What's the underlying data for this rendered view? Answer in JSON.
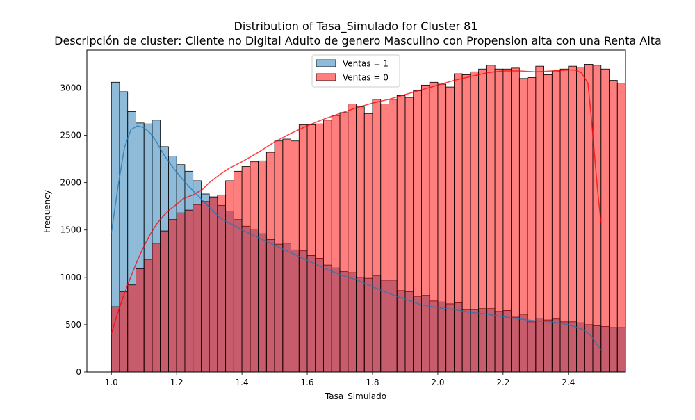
{
  "chart_data": {
    "type": "histogram",
    "title": "Distribution of Tasa_Simulado for Cluster 81",
    "subtitle": "Descripción de cluster: Cliente no Digital Adulto de genero Masculino con Propension alta con una Renta Alta",
    "xlabel": "Tasa_Simulado",
    "ylabel": "Frequency",
    "xlim": [
      0.925,
      2.575
    ],
    "ylim": [
      0,
      3400
    ],
    "xticks": [
      "1.0",
      "1.2",
      "1.4",
      "1.6",
      "1.8",
      "2.0",
      "2.2",
      "2.4"
    ],
    "yticks": [
      "0",
      "500",
      "1000",
      "1500",
      "2000",
      "2500",
      "3000"
    ],
    "bin_start": 1.0,
    "bin_width": 0.025,
    "legend_position": "top-center",
    "colors": {
      "ventas_1": "#1f77b4",
      "ventas_0": "#ff0000",
      "kde_1": "#1f77b4",
      "kde_0": "#ff0000"
    },
    "series": [
      {
        "name": "Ventas = 1",
        "values": [
          3060,
          2960,
          2750,
          2630,
          2620,
          2660,
          2380,
          2280,
          2190,
          2120,
          2020,
          1880,
          1840,
          1760,
          1700,
          1610,
          1540,
          1510,
          1460,
          1400,
          1350,
          1360,
          1290,
          1280,
          1230,
          1200,
          1130,
          1100,
          1060,
          1050,
          1000,
          990,
          1020,
          970,
          970,
          860,
          850,
          800,
          810,
          750,
          740,
          720,
          730,
          660,
          660,
          670,
          670,
          640,
          650,
          580,
          610,
          530,
          570,
          550,
          560,
          530,
          530,
          520,
          500,
          490,
          480,
          470,
          470
        ],
        "kde": [
          [
            1.0,
            1470
          ],
          [
            1.02,
            1950
          ],
          [
            1.04,
            2370
          ],
          [
            1.06,
            2560
          ],
          [
            1.08,
            2600
          ],
          [
            1.1,
            2580
          ],
          [
            1.12,
            2520
          ],
          [
            1.14,
            2420
          ],
          [
            1.16,
            2300
          ],
          [
            1.18,
            2200
          ],
          [
            1.2,
            2110
          ],
          [
            1.22,
            2030
          ],
          [
            1.24,
            1950
          ],
          [
            1.26,
            1880
          ],
          [
            1.28,
            1810
          ],
          [
            1.3,
            1740
          ],
          [
            1.32,
            1670
          ],
          [
            1.34,
            1610
          ],
          [
            1.36,
            1575
          ],
          [
            1.38,
            1540
          ],
          [
            1.4,
            1500
          ],
          [
            1.45,
            1420
          ],
          [
            1.5,
            1340
          ],
          [
            1.55,
            1260
          ],
          [
            1.6,
            1180
          ],
          [
            1.65,
            1100
          ],
          [
            1.7,
            1030
          ],
          [
            1.75,
            975
          ],
          [
            1.8,
            900
          ],
          [
            1.85,
            830
          ],
          [
            1.9,
            770
          ],
          [
            1.95,
            710
          ],
          [
            2.0,
            680
          ],
          [
            2.05,
            660
          ],
          [
            2.1,
            630
          ],
          [
            2.15,
            610
          ],
          [
            2.2,
            585
          ],
          [
            2.25,
            560
          ],
          [
            2.3,
            540
          ],
          [
            2.35,
            530
          ],
          [
            2.4,
            500
          ],
          [
            2.42,
            480
          ],
          [
            2.45,
            440
          ],
          [
            2.47,
            380
          ],
          [
            2.5,
            230
          ]
        ]
      },
      {
        "name": "Ventas = 0",
        "values": [
          690,
          850,
          920,
          1090,
          1190,
          1360,
          1490,
          1610,
          1680,
          1710,
          1770,
          1800,
          1850,
          1870,
          2020,
          2120,
          2170,
          2220,
          2230,
          2320,
          2440,
          2460,
          2440,
          2610,
          2610,
          2620,
          2660,
          2710,
          2740,
          2830,
          2800,
          2730,
          2880,
          2830,
          2880,
          2920,
          2900,
          2970,
          3030,
          3060,
          3040,
          3010,
          3150,
          3140,
          3170,
          3200,
          3240,
          3200,
          3200,
          3210,
          3100,
          3110,
          3230,
          3140,
          3180,
          3200,
          3230,
          3220,
          3250,
          3240,
          3200,
          3080,
          3050
        ],
        "kde": [
          [
            1.0,
            400
          ],
          [
            1.02,
            630
          ],
          [
            1.04,
            830
          ],
          [
            1.06,
            1010
          ],
          [
            1.08,
            1180
          ],
          [
            1.1,
            1330
          ],
          [
            1.12,
            1460
          ],
          [
            1.14,
            1570
          ],
          [
            1.16,
            1650
          ],
          [
            1.18,
            1720
          ],
          [
            1.2,
            1770
          ],
          [
            1.22,
            1830
          ],
          [
            1.25,
            1870
          ],
          [
            1.28,
            1930
          ],
          [
            1.3,
            2000
          ],
          [
            1.33,
            2080
          ],
          [
            1.36,
            2150
          ],
          [
            1.4,
            2220
          ],
          [
            1.45,
            2320
          ],
          [
            1.5,
            2430
          ],
          [
            1.55,
            2520
          ],
          [
            1.6,
            2600
          ],
          [
            1.65,
            2670
          ],
          [
            1.7,
            2730
          ],
          [
            1.75,
            2790
          ],
          [
            1.8,
            2840
          ],
          [
            1.85,
            2880
          ],
          [
            1.9,
            2930
          ],
          [
            1.95,
            2980
          ],
          [
            2.0,
            3030
          ],
          [
            2.05,
            3080
          ],
          [
            2.1,
            3120
          ],
          [
            2.15,
            3160
          ],
          [
            2.2,
            3180
          ],
          [
            2.25,
            3180
          ],
          [
            2.3,
            3170
          ],
          [
            2.35,
            3180
          ],
          [
            2.4,
            3190
          ],
          [
            2.42,
            3190
          ],
          [
            2.44,
            3160
          ],
          [
            2.46,
            3050
          ],
          [
            2.47,
            2700
          ],
          [
            2.48,
            2300
          ],
          [
            2.49,
            1900
          ],
          [
            2.5,
            1580
          ]
        ]
      }
    ]
  }
}
